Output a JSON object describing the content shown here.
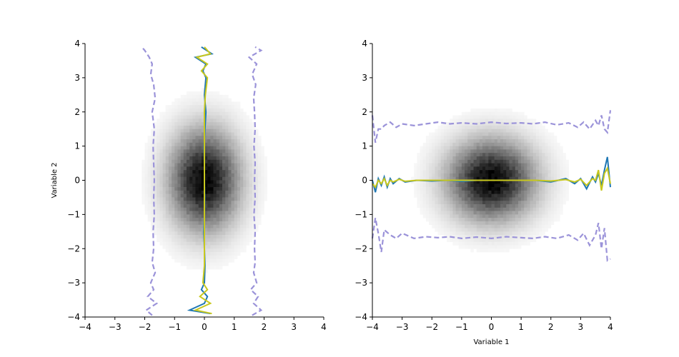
{
  "chart_data": [
    {
      "type": "heatmap",
      "description_free": true,
      "xlabel": "",
      "ylabel": "Variable 2",
      "xlim": [
        -4,
        4
      ],
      "ylim": [
        -4,
        4
      ],
      "xticks": [
        "−4",
        "−3",
        "−2",
        "−1",
        "0",
        "1",
        "2",
        "3",
        "4"
      ],
      "yticks": [
        "−4",
        "−3",
        "−2",
        "−1",
        "0",
        "1",
        "2",
        "3",
        "4"
      ],
      "density": {
        "center": [
          0,
          0
        ],
        "sigma": [
          0.8,
          1.0
        ],
        "colormap": "gray_r"
      },
      "lines": {
        "orientation": "vertical",
        "series": [
          {
            "role": "mean",
            "color": "#1f77b4",
            "style": "solid",
            "y": [
              -3.9,
              -3.8,
              -3.6,
              -3.4,
              -3.2,
              -3.0,
              -2.5,
              -2.0,
              -1.5,
              -1.0,
              -0.5,
              0,
              0.5,
              1.0,
              1.5,
              2.0,
              2.5,
              3.0,
              3.2,
              3.4,
              3.6,
              3.7,
              3.9
            ],
            "x": [
              0.2,
              -0.5,
              0.0,
              0.1,
              -0.1,
              0.0,
              0.02,
              0.0,
              -0.02,
              0.0,
              0.01,
              0.0,
              0.0,
              -0.01,
              0.02,
              0.05,
              0.0,
              0.05,
              -0.05,
              0.05,
              -0.3,
              0.25,
              -0.1
            ]
          },
          {
            "role": "median",
            "color": "#c8c81e",
            "style": "solid",
            "y": [
              -3.9,
              -3.8,
              -3.6,
              -3.4,
              -3.2,
              -3.0,
              -2.5,
              -2.0,
              -1.5,
              -1.0,
              -0.5,
              0,
              0.5,
              1.0,
              1.5,
              2.0,
              2.5,
              3.0,
              3.2,
              3.4,
              3.6,
              3.7,
              3.9
            ],
            "x": [
              0.25,
              -0.3,
              0.2,
              -0.15,
              0.1,
              -0.05,
              0.0,
              0.0,
              0.0,
              0.0,
              0.0,
              0.0,
              0.0,
              0.0,
              0.0,
              0.0,
              0.03,
              0.1,
              -0.1,
              0.1,
              -0.25,
              0.2,
              0.0
            ]
          },
          {
            "role": "lower-quantile",
            "color": "#9b93d9",
            "style": "dashed",
            "y": [
              -3.95,
              -3.8,
              -3.6,
              -3.4,
              -3.2,
              -3.0,
              -2.7,
              -2.4,
              -2.0,
              -1.5,
              -1.0,
              -0.5,
              0,
              0.5,
              1.0,
              1.5,
              2.0,
              2.4,
              2.8,
              3.1,
              3.4,
              3.6,
              3.8,
              3.9
            ],
            "x": [
              -1.75,
              -1.95,
              -1.6,
              -1.9,
              -1.7,
              -1.8,
              -1.65,
              -1.75,
              -1.7,
              -1.72,
              -1.68,
              -1.7,
              -1.68,
              -1.7,
              -1.72,
              -1.68,
              -1.75,
              -1.65,
              -1.7,
              -1.8,
              -1.75,
              -1.85,
              -2.0,
              -2.1
            ]
          },
          {
            "role": "upper-quantile",
            "color": "#9b93d9",
            "style": "dashed",
            "y": [
              -3.95,
              -3.8,
              -3.6,
              -3.4,
              -3.2,
              -3.0,
              -2.7,
              -2.4,
              -2.0,
              -1.5,
              -1.0,
              -0.5,
              0,
              0.5,
              1.0,
              1.5,
              2.0,
              2.4,
              2.8,
              3.1,
              3.4,
              3.6,
              3.8,
              3.9
            ],
            "x": [
              1.6,
              1.9,
              1.65,
              1.8,
              1.55,
              1.75,
              1.65,
              1.7,
              1.68,
              1.7,
              1.66,
              1.7,
              1.68,
              1.7,
              1.66,
              1.7,
              1.68,
              1.65,
              1.72,
              1.6,
              1.75,
              1.5,
              1.9,
              1.7
            ]
          }
        ]
      }
    },
    {
      "type": "heatmap",
      "xlabel": "Variable 1",
      "ylabel": "",
      "xlim": [
        -4,
        4
      ],
      "ylim": [
        -4,
        4
      ],
      "xticks": [
        "−4",
        "−3",
        "−2",
        "−1",
        "0",
        "1",
        "2",
        "3",
        "4"
      ],
      "yticks": [
        "−4",
        "−3",
        "−2",
        "−1",
        "0",
        "1",
        "2",
        "3",
        "4"
      ],
      "density": {
        "center": [
          0,
          0
        ],
        "sigma": [
          1.0,
          0.8
        ],
        "colormap": "gray_r"
      },
      "lines": {
        "orientation": "horizontal",
        "series": [
          {
            "role": "mean",
            "color": "#1f77b4",
            "style": "solid",
            "x": [
              -4.0,
              -3.9,
              -3.8,
              -3.7,
              -3.6,
              -3.5,
              -3.4,
              -3.3,
              -3.1,
              -2.9,
              -2.5,
              -2.0,
              -1.5,
              -1.0,
              -0.5,
              0,
              0.5,
              1.0,
              1.5,
              2.0,
              2.5,
              2.8,
              3.0,
              3.2,
              3.4,
              3.5,
              3.6,
              3.7,
              3.8,
              3.9,
              4.0
            ],
            "y": [
              0.0,
              -0.35,
              0.05,
              -0.15,
              0.1,
              -0.2,
              0.05,
              -0.1,
              0.05,
              -0.05,
              0.0,
              -0.02,
              0.0,
              -0.03,
              0.0,
              0.0,
              0.0,
              0.0,
              0.0,
              -0.05,
              0.05,
              -0.1,
              0.05,
              -0.25,
              0.1,
              -0.05,
              0.2,
              -0.15,
              0.3,
              0.68,
              -0.2
            ]
          },
          {
            "role": "median",
            "color": "#c8c81e",
            "style": "solid",
            "x": [
              -4.0,
              -3.9,
              -3.8,
              -3.7,
              -3.6,
              -3.5,
              -3.4,
              -3.3,
              -3.1,
              -2.9,
              -2.5,
              -2.0,
              -1.5,
              -1.0,
              -0.5,
              0,
              0.5,
              1.0,
              1.5,
              2.0,
              2.5,
              2.8,
              3.0,
              3.2,
              3.4,
              3.5,
              3.6,
              3.7,
              3.8,
              3.9,
              4.0
            ],
            "y": [
              -0.1,
              -0.2,
              0.0,
              -0.1,
              0.05,
              -0.15,
              0.0,
              -0.05,
              0.03,
              -0.03,
              0.0,
              0.0,
              0.0,
              0.0,
              0.0,
              0.0,
              0.0,
              0.0,
              0.0,
              -0.02,
              0.02,
              -0.05,
              0.03,
              -0.15,
              0.05,
              0.0,
              0.3,
              -0.3,
              0.2,
              0.35,
              -0.1
            ]
          },
          {
            "role": "upper-quantile",
            "color": "#9b93d9",
            "style": "dashed",
            "x": [
              -4.0,
              -3.9,
              -3.8,
              -3.7,
              -3.6,
              -3.4,
              -3.2,
              -3.0,
              -2.6,
              -2.2,
              -1.8,
              -1.4,
              -1.0,
              -0.5,
              0,
              0.5,
              1.0,
              1.4,
              1.8,
              2.2,
              2.6,
              2.9,
              3.1,
              3.3,
              3.5,
              3.6,
              3.7,
              3.8,
              3.9,
              4.0
            ],
            "y": [
              1.9,
              1.1,
              1.5,
              1.5,
              1.6,
              1.7,
              1.55,
              1.65,
              1.6,
              1.65,
              1.7,
              1.65,
              1.68,
              1.65,
              1.7,
              1.66,
              1.68,
              1.65,
              1.7,
              1.62,
              1.68,
              1.55,
              1.7,
              1.5,
              1.75,
              1.6,
              1.9,
              1.5,
              1.4,
              2.05
            ]
          },
          {
            "role": "lower-quantile",
            "color": "#9b93d9",
            "style": "dashed",
            "x": [
              -4.0,
              -3.9,
              -3.8,
              -3.7,
              -3.6,
              -3.4,
              -3.2,
              -3.0,
              -2.6,
              -2.2,
              -1.8,
              -1.4,
              -1.0,
              -0.5,
              0,
              0.5,
              1.0,
              1.4,
              1.8,
              2.2,
              2.6,
              2.9,
              3.1,
              3.3,
              3.5,
              3.6,
              3.7,
              3.8,
              3.9,
              4.0
            ],
            "y": [
              -1.7,
              -1.1,
              -1.55,
              -2.1,
              -1.45,
              -1.6,
              -1.7,
              -1.55,
              -1.7,
              -1.65,
              -1.68,
              -1.65,
              -1.7,
              -1.66,
              -1.7,
              -1.65,
              -1.68,
              -1.7,
              -1.65,
              -1.7,
              -1.6,
              -1.75,
              -1.55,
              -1.9,
              -1.6,
              -1.25,
              -2.0,
              -1.4,
              -2.35,
              -2.3
            ]
          }
        ]
      }
    }
  ]
}
